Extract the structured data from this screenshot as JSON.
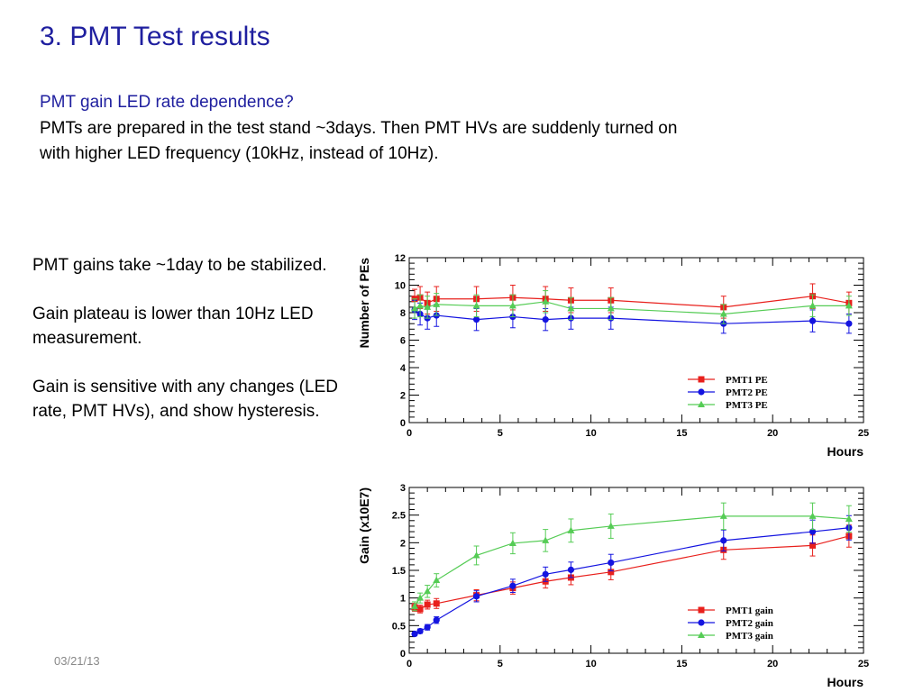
{
  "slide": {
    "title": "3. PMT Test results",
    "subtitle": "PMT gain LED rate dependence?",
    "intro_lines": [
      "PMTs are prepared in the test stand ~3days. Then PMT HVs are suddenly turned on",
      "with higher LED frequency (10kHz, instead of 10Hz)."
    ],
    "notes": [
      "PMT gains take ~1day to be stabilized.",
      "Gain plateau is lower than 10Hz LED measurement.",
      "Gain is sensitive with any changes (LED rate, PMT HVs), and show hysteresis."
    ],
    "date": "03/21/13"
  },
  "chart_data": [
    {
      "type": "line",
      "xlabel": "Hours",
      "ylabel": "Number of PEs",
      "xlim": [
        0,
        25
      ],
      "ylim": [
        0,
        12
      ],
      "xticks": [
        0,
        5,
        10,
        15,
        20,
        25
      ],
      "yticks": [
        0,
        2,
        4,
        6,
        8,
        10,
        12
      ],
      "legend_position": "bottom-right",
      "series": [
        {
          "name": "PMT1 PE",
          "color": "#e8201c",
          "marker": "square",
          "x": [
            0.3,
            0.6,
            1.0,
            1.5,
            3.7,
            5.7,
            7.5,
            8.9,
            11.1,
            17.3,
            22.2,
            24.2
          ],
          "y": [
            9.0,
            9.1,
            8.7,
            9.0,
            9.0,
            9.1,
            9.0,
            8.9,
            8.9,
            8.4,
            9.2,
            8.7
          ],
          "err": [
            0.7,
            0.8,
            0.8,
            0.9,
            0.9,
            0.9,
            0.9,
            0.9,
            0.9,
            0.8,
            0.9,
            0.8
          ]
        },
        {
          "name": "PMT2 PE",
          "color": "#1414e0",
          "marker": "circle",
          "x": [
            0.3,
            0.6,
            1.0,
            1.5,
            3.7,
            5.7,
            7.5,
            8.9,
            11.1,
            17.3,
            22.2,
            24.2
          ],
          "y": [
            8.2,
            7.9,
            7.6,
            7.8,
            7.5,
            7.7,
            7.5,
            7.6,
            7.6,
            7.2,
            7.4,
            7.2
          ],
          "err": [
            0.7,
            0.8,
            0.8,
            0.8,
            0.8,
            0.8,
            0.8,
            0.8,
            0.8,
            0.7,
            0.8,
            0.7
          ]
        },
        {
          "name": "PMT3 PE",
          "color": "#55cc55",
          "marker": "triangle",
          "x": [
            0.3,
            0.6,
            1.0,
            1.5,
            3.7,
            5.7,
            7.5,
            8.9,
            11.1,
            17.3,
            22.2,
            24.2
          ],
          "y": [
            8.3,
            8.5,
            8.4,
            8.6,
            8.5,
            8.5,
            8.8,
            8.3,
            8.3,
            7.9,
            8.5,
            8.5
          ],
          "err": [
            0.7,
            0.8,
            0.8,
            0.8,
            0.8,
            0.8,
            0.8,
            0.8,
            0.8,
            0.7,
            0.8,
            0.7
          ]
        }
      ]
    },
    {
      "type": "line",
      "xlabel": "Hours",
      "ylabel": "Gain (x10E7)",
      "xlim": [
        0,
        25
      ],
      "ylim": [
        0,
        3
      ],
      "xticks": [
        0,
        5,
        10,
        15,
        20,
        25
      ],
      "yticks": [
        0,
        0.5,
        1,
        1.5,
        2,
        2.5,
        3
      ],
      "legend_position": "bottom-right",
      "series": [
        {
          "name": "PMT1 gain",
          "color": "#e8201c",
          "marker": "square",
          "x": [
            0.3,
            0.6,
            1.0,
            1.5,
            3.7,
            5.7,
            7.5,
            8.9,
            11.1,
            17.3,
            22.2,
            24.2
          ],
          "y": [
            0.83,
            0.8,
            0.88,
            0.9,
            1.05,
            1.18,
            1.3,
            1.37,
            1.47,
            1.87,
            1.95,
            2.12
          ],
          "err": [
            0.07,
            0.07,
            0.08,
            0.09,
            0.1,
            0.11,
            0.12,
            0.13,
            0.14,
            0.17,
            0.19,
            0.2
          ]
        },
        {
          "name": "PMT2 gain",
          "color": "#1414e0",
          "marker": "circle",
          "x": [
            0.3,
            0.6,
            1.0,
            1.5,
            3.7,
            5.7,
            7.5,
            8.9,
            11.1,
            17.3,
            22.2,
            24.2
          ],
          "y": [
            0.35,
            0.4,
            0.47,
            0.6,
            1.03,
            1.22,
            1.43,
            1.51,
            1.64,
            2.04,
            2.2,
            2.27
          ],
          "err": [
            0.03,
            0.04,
            0.05,
            0.06,
            0.1,
            0.12,
            0.13,
            0.14,
            0.15,
            0.19,
            0.21,
            0.22
          ]
        },
        {
          "name": "PMT3 gain",
          "color": "#55cc55",
          "marker": "triangle",
          "x": [
            0.3,
            0.6,
            1.0,
            1.5,
            3.7,
            5.7,
            7.5,
            8.9,
            11.1,
            17.3,
            22.2,
            24.2
          ],
          "y": [
            0.85,
            1.0,
            1.12,
            1.32,
            1.77,
            1.99,
            2.04,
            2.22,
            2.3,
            2.48,
            2.48,
            2.43
          ],
          "err": [
            0.08,
            0.09,
            0.11,
            0.12,
            0.17,
            0.19,
            0.2,
            0.21,
            0.22,
            0.24,
            0.24,
            0.24
          ]
        }
      ]
    }
  ]
}
